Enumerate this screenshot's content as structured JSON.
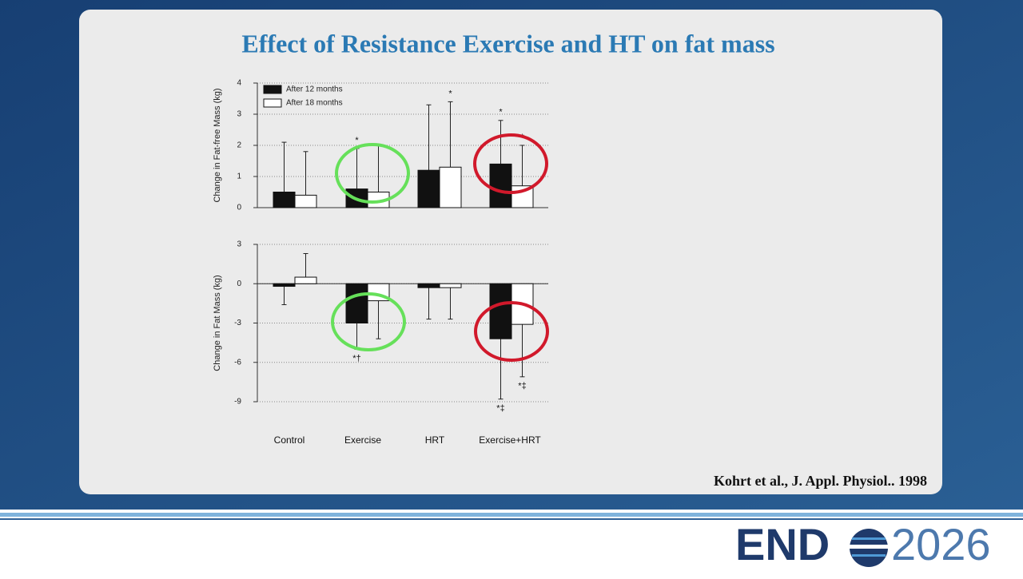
{
  "title": "Effect of Resistance Exercise and HT on fat mass",
  "citation": "Kohrt et al.,  J. Appl. Physiol.. 1998",
  "logo": {
    "left": "END",
    "right": "2026"
  },
  "chart_data": [
    {
      "type": "bar",
      "y_label": "Change in Fat-free Mass (kg)",
      "ylim": [
        0,
        4
      ],
      "yticks": [
        0,
        1,
        2,
        3,
        4
      ],
      "grid": true,
      "legend": "upper left",
      "series": [
        {
          "name": "After 12 months",
          "color": "#111111",
          "values": [
            0.5,
            0.6,
            1.2,
            1.4
          ],
          "errors": [
            1.6,
            1.3,
            2.1,
            1.4
          ],
          "value_annotations": [
            null,
            "*",
            null,
            "*"
          ]
        },
        {
          "name": "After 18 months",
          "color": "#ffffff",
          "values": [
            0.4,
            0.5,
            1.3,
            0.7
          ],
          "errors": [
            1.4,
            1.5,
            2.1,
            1.3
          ],
          "value_annotations": [
            null,
            null,
            "*",
            "*"
          ]
        }
      ]
    },
    {
      "type": "bar",
      "y_label": "Change in Fat Mass (kg)",
      "categories": [
        "Control",
        "Exercise",
        "HRT",
        "Exercise+HRT"
      ],
      "ylim": [
        -9,
        3
      ],
      "yticks": [
        -9,
        -6,
        -3,
        0,
        3
      ],
      "grid": true,
      "series": [
        {
          "color": "#111111",
          "values": [
            -0.2,
            -3.0,
            -0.3,
            -4.2
          ],
          "errors": [
            1.4,
            2.0,
            2.4,
            4.6
          ],
          "value_annotations": [
            null,
            "*†",
            null,
            "*‡"
          ]
        },
        {
          "color": "#ffffff",
          "values": [
            0.5,
            -1.3,
            -0.3,
            -3.1
          ],
          "errors": [
            1.8,
            2.9,
            2.4,
            4.0
          ],
          "value_annotations": [
            null,
            null,
            null,
            "*‡"
          ]
        }
      ]
    }
  ]
}
